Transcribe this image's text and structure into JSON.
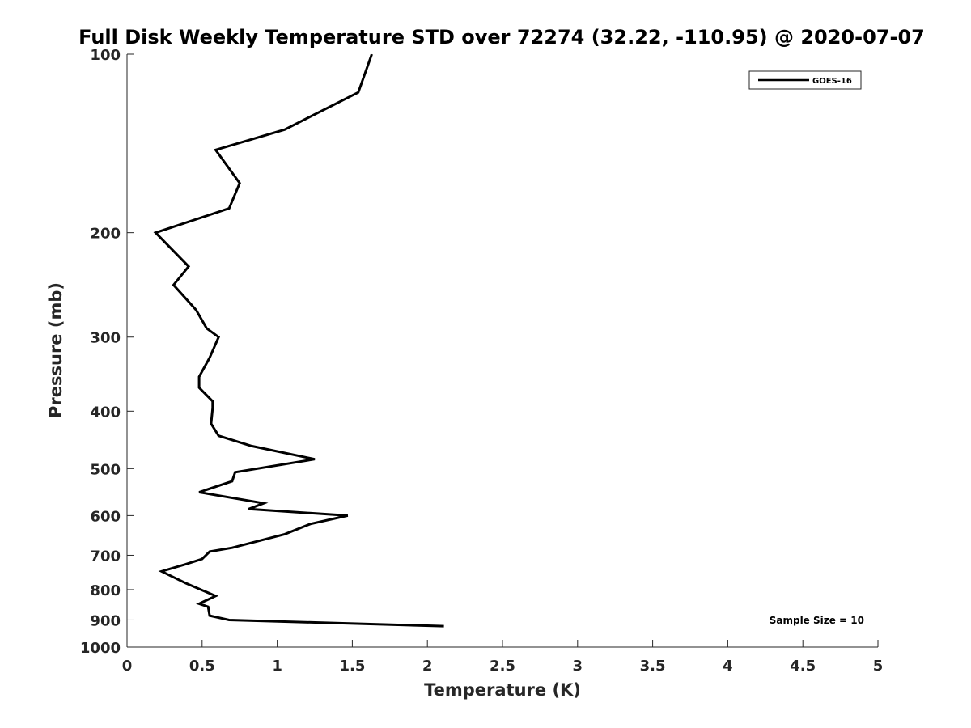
{
  "chart_data": {
    "type": "line",
    "title": "Full Disk Weekly Temperature STD over 72274 (32.22, -110.95) @ 2020-07-07",
    "xlabel": "Temperature (K)",
    "ylabel": "Pressure (mb)",
    "xlim": [
      0,
      5
    ],
    "ylim": [
      100,
      1000
    ],
    "y_scale": "log",
    "y_reversed": true,
    "grid": false,
    "x_ticks": [
      0,
      0.5,
      1,
      1.5,
      2,
      2.5,
      3,
      3.5,
      4,
      4.5,
      5
    ],
    "x_tick_labels": [
      "0",
      "0.5",
      "1",
      "1.5",
      "2",
      "2.5",
      "3",
      "3.5",
      "4",
      "4.5",
      "5"
    ],
    "y_ticks": [
      100,
      200,
      300,
      400,
      500,
      600,
      700,
      800,
      900,
      1000
    ],
    "y_tick_labels": [
      "100",
      "200",
      "300",
      "400",
      "500",
      "600",
      "700",
      "800",
      "900",
      "1000"
    ],
    "legend_position": "top-right",
    "annotation": "Sample Size = 10",
    "series": [
      {
        "name": "GOES-16",
        "color": "#000000",
        "x": [
          1.63,
          1.54,
          1.05,
          0.59,
          0.75,
          0.68,
          0.19,
          0.41,
          0.31,
          0.46,
          0.53,
          0.61,
          0.55,
          0.48,
          0.48,
          0.57,
          0.57,
          0.56,
          0.61,
          0.83,
          1.25,
          0.72,
          0.7,
          0.48,
          0.91,
          0.81,
          1.47,
          1.22,
          1.05,
          0.7,
          0.55,
          0.5,
          0.39,
          0.23,
          0.29,
          0.39,
          0.59,
          0.48,
          0.54,
          0.55,
          0.68,
          2.11
        ],
        "y": [
          100,
          116,
          134,
          145,
          165,
          182,
          200,
          228,
          245,
          270,
          290,
          300,
          325,
          350,
          365,
          385,
          395,
          420,
          440,
          458,
          482,
          507,
          525,
          548,
          572,
          585,
          600,
          620,
          645,
          680,
          690,
          710,
          725,
          745,
          758,
          780,
          820,
          845,
          855,
          885,
          900,
          922
        ]
      }
    ]
  }
}
